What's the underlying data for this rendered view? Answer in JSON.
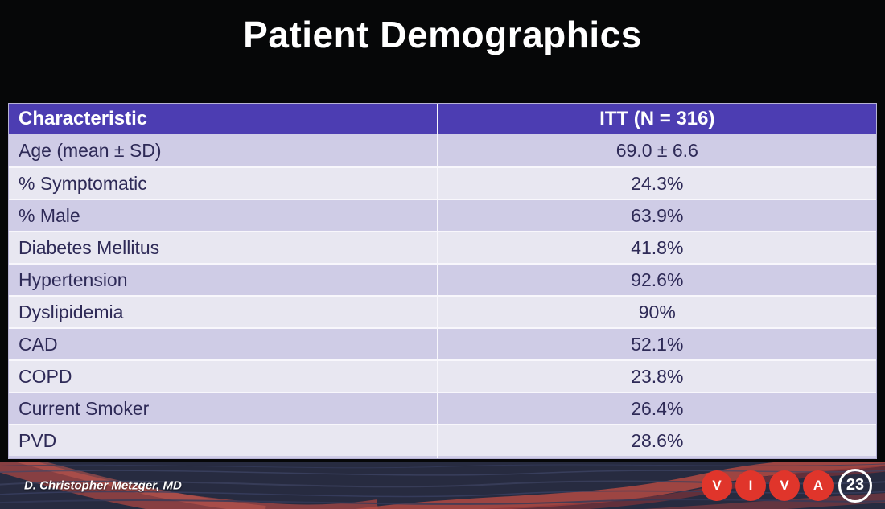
{
  "title": "Patient Demographics",
  "table": {
    "columns": [
      "Characteristic",
      "ITT (N = 316)"
    ],
    "rows": [
      [
        "Age (mean ± SD)",
        "69.0 ± 6.6"
      ],
      [
        "% Symptomatic",
        "24.3%"
      ],
      [
        "% Male",
        "63.9%"
      ],
      [
        "Diabetes Mellitus",
        "41.8%"
      ],
      [
        "Hypertension",
        "92.6%"
      ],
      [
        "Dyslipidemia",
        "90%"
      ],
      [
        "CAD",
        "52.1%"
      ],
      [
        "COPD",
        "23.8%"
      ],
      [
        "Current Smoker",
        "26.4%"
      ],
      [
        "PVD",
        "28.6%"
      ]
    ],
    "colors": {
      "header_bg": "#4c3db2",
      "row_dark": "#cfcce6",
      "row_light": "#e8e7f1",
      "row_text": "#2e2a57"
    }
  },
  "footer": {
    "presenter": "D. Christopher Metzger, MD",
    "logo_letters": [
      "V",
      "I",
      "V",
      "A"
    ],
    "badge": "23",
    "logo_color": "#e0352b"
  },
  "chart_data": {
    "type": "table",
    "title": "Patient Demographics",
    "columns": [
      "Characteristic",
      "ITT (N = 316)"
    ],
    "rows": [
      [
        "Age (mean ± SD)",
        "69.0 ± 6.6"
      ],
      [
        "% Symptomatic",
        "24.3%"
      ],
      [
        "% Male",
        "63.9%"
      ],
      [
        "Diabetes Mellitus",
        "41.8%"
      ],
      [
        "Hypertension",
        "92.6%"
      ],
      [
        "Dyslipidemia",
        "90%"
      ],
      [
        "CAD",
        "52.1%"
      ],
      [
        "COPD",
        "23.8%"
      ],
      [
        "Current Smoker",
        "26.4%"
      ],
      [
        "PVD",
        "28.6%"
      ]
    ]
  }
}
